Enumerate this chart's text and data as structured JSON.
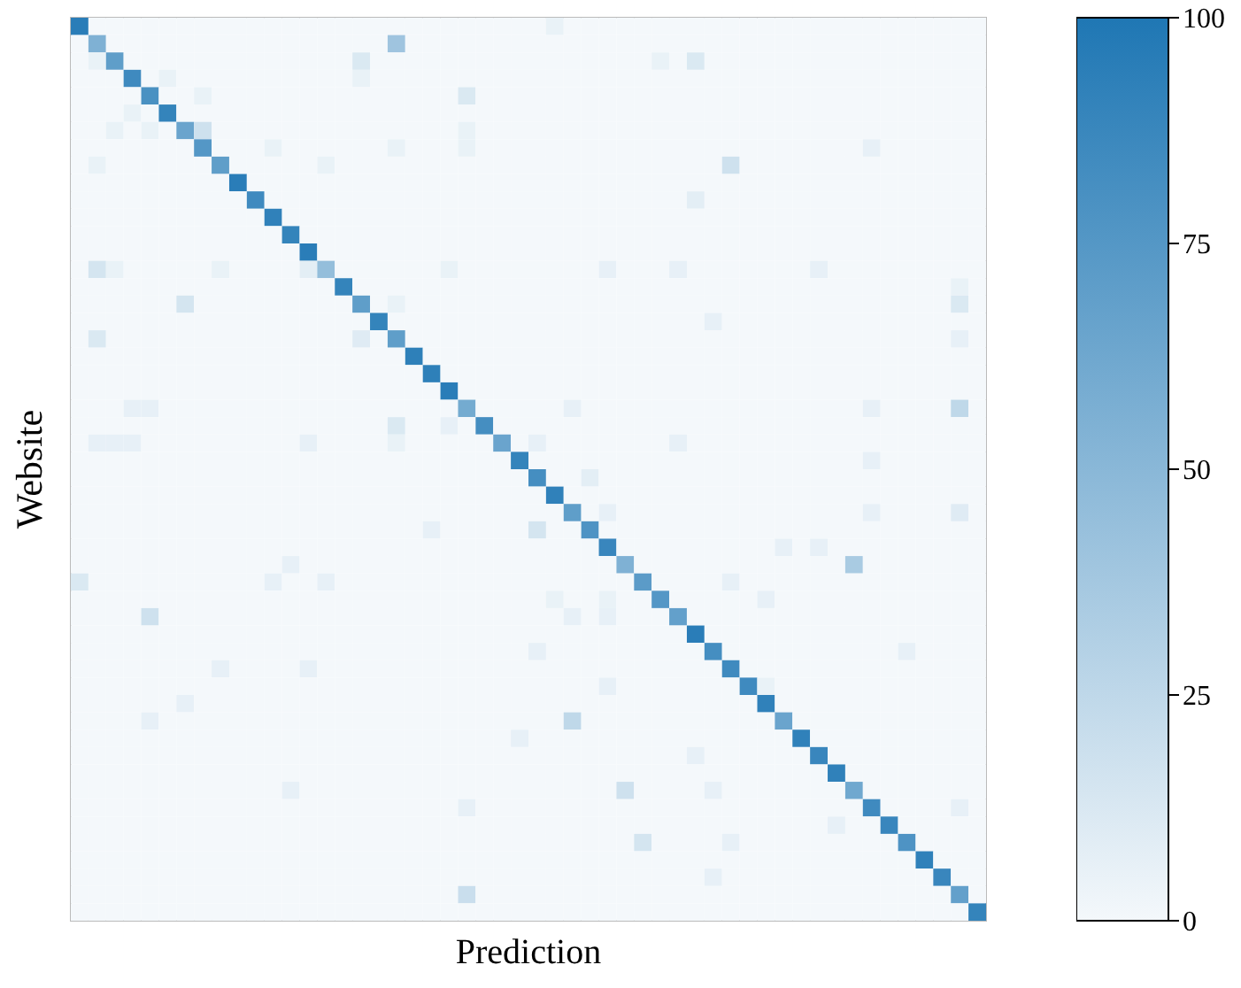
{
  "chart_data": {
    "type": "heatmap",
    "xlabel": "Prediction",
    "ylabel": "Website",
    "categories": [
      null,
      null,
      null,
      null,
      null,
      null,
      null,
      null,
      null,
      null,
      null,
      null,
      null,
      null,
      null,
      null,
      null,
      null,
      null,
      null,
      null,
      null,
      null,
      null,
      null,
      null,
      null,
      null,
      null,
      null,
      null,
      null,
      null,
      null,
      null,
      null,
      null,
      null,
      null,
      null,
      null,
      null,
      null,
      null,
      null,
      null,
      null,
      null,
      null,
      null,
      null,
      null
    ],
    "y_categories": [
      null,
      null,
      null,
      null,
      null,
      null,
      null,
      null,
      null,
      null,
      null,
      null,
      null,
      null,
      null,
      null,
      null,
      null,
      null,
      null,
      null,
      null,
      null,
      null,
      null,
      null,
      null,
      null,
      null,
      null,
      null,
      null,
      null,
      null,
      null,
      null,
      null,
      null,
      null,
      null,
      null,
      null,
      null,
      null,
      null,
      null,
      null,
      null,
      null,
      null,
      null,
      null
    ],
    "tick_labels": false,
    "clim": [
      0,
      100
    ],
    "cticks": [
      0,
      25,
      50,
      75,
      100
    ],
    "cells": [
      [
        95,
        0,
        0,
        0,
        0,
        0,
        0,
        0,
        0,
        0,
        0,
        0,
        0,
        0,
        0,
        0,
        0,
        0,
        0,
        0,
        0,
        0,
        0,
        0,
        0,
        0,
        0,
        5,
        0,
        0,
        0,
        0,
        0,
        0,
        0,
        0,
        0,
        0,
        0,
        0,
        0,
        0,
        0,
        0,
        0,
        0,
        0,
        0,
        0,
        0,
        0,
        0
      ],
      [
        0,
        55,
        0,
        0,
        0,
        0,
        0,
        0,
        0,
        0,
        0,
        0,
        0,
        0,
        0,
        0,
        0,
        0,
        40,
        0,
        0,
        0,
        0,
        0,
        0,
        0,
        0,
        0,
        0,
        0,
        0,
        0,
        0,
        0,
        0,
        0,
        0,
        0,
        0,
        0,
        0,
        0,
        0,
        0,
        0,
        0,
        0,
        0,
        0,
        0,
        0,
        0
      ],
      [
        0,
        5,
        70,
        0,
        0,
        0,
        0,
        0,
        0,
        0,
        0,
        0,
        0,
        0,
        0,
        0,
        12,
        0,
        0,
        0,
        0,
        0,
        0,
        0,
        0,
        0,
        0,
        0,
        0,
        0,
        0,
        0,
        0,
        5,
        0,
        12,
        0,
        0,
        0,
        0,
        0,
        0,
        0,
        0,
        0,
        0,
        0,
        0,
        0,
        0,
        0,
        0
      ],
      [
        0,
        0,
        0,
        85,
        0,
        5,
        0,
        0,
        0,
        0,
        0,
        0,
        0,
        0,
        0,
        0,
        5,
        0,
        0,
        0,
        0,
        0,
        0,
        0,
        0,
        0,
        0,
        0,
        0,
        0,
        0,
        0,
        0,
        0,
        0,
        0,
        0,
        0,
        0,
        0,
        0,
        0,
        0,
        0,
        0,
        0,
        0,
        0,
        0,
        0,
        0,
        0
      ],
      [
        0,
        0,
        0,
        0,
        80,
        0,
        0,
        5,
        0,
        0,
        0,
        0,
        0,
        0,
        0,
        0,
        0,
        0,
        0,
        0,
        0,
        0,
        12,
        0,
        0,
        0,
        0,
        0,
        0,
        0,
        0,
        0,
        0,
        0,
        0,
        0,
        0,
        0,
        0,
        0,
        0,
        0,
        0,
        0,
        0,
        0,
        0,
        0,
        0,
        0,
        0,
        0
      ],
      [
        0,
        0,
        0,
        5,
        0,
        90,
        0,
        0,
        0,
        0,
        0,
        0,
        0,
        0,
        0,
        0,
        0,
        0,
        0,
        0,
        0,
        0,
        0,
        0,
        0,
        0,
        0,
        0,
        0,
        0,
        0,
        0,
        0,
        0,
        0,
        0,
        0,
        0,
        0,
        0,
        0,
        0,
        0,
        0,
        0,
        0,
        0,
        0,
        0,
        0,
        0,
        0
      ],
      [
        0,
        0,
        5,
        0,
        5,
        0,
        65,
        18,
        0,
        0,
        0,
        0,
        0,
        0,
        0,
        0,
        0,
        0,
        0,
        0,
        0,
        0,
        5,
        0,
        0,
        0,
        0,
        0,
        0,
        0,
        0,
        0,
        0,
        0,
        0,
        0,
        0,
        0,
        0,
        0,
        0,
        0,
        0,
        0,
        0,
        0,
        0,
        0,
        0,
        0,
        0,
        0
      ],
      [
        0,
        0,
        0,
        0,
        0,
        0,
        0,
        75,
        0,
        0,
        0,
        5,
        0,
        0,
        0,
        0,
        0,
        0,
        5,
        0,
        0,
        0,
        5,
        0,
        0,
        0,
        0,
        0,
        0,
        0,
        0,
        0,
        0,
        0,
        0,
        0,
        0,
        0,
        0,
        0,
        0,
        0,
        0,
        0,
        0,
        6,
        0,
        0,
        0,
        0,
        0,
        0
      ],
      [
        0,
        5,
        0,
        0,
        0,
        0,
        0,
        0,
        70,
        0,
        0,
        0,
        0,
        0,
        5,
        0,
        0,
        0,
        0,
        0,
        0,
        0,
        0,
        0,
        0,
        0,
        0,
        0,
        0,
        0,
        0,
        0,
        0,
        0,
        0,
        0,
        0,
        18,
        0,
        0,
        0,
        0,
        0,
        0,
        0,
        0,
        0,
        0,
        0,
        0,
        0,
        0
      ],
      [
        0,
        0,
        0,
        0,
        0,
        0,
        0,
        0,
        0,
        95,
        0,
        0,
        0,
        0,
        0,
        0,
        0,
        0,
        0,
        0,
        0,
        0,
        0,
        0,
        0,
        0,
        0,
        0,
        0,
        0,
        0,
        0,
        0,
        0,
        0,
        0,
        0,
        0,
        0,
        0,
        0,
        0,
        0,
        0,
        0,
        0,
        0,
        0,
        0,
        0,
        0,
        0
      ],
      [
        0,
        0,
        0,
        0,
        0,
        0,
        0,
        0,
        0,
        0,
        85,
        0,
        0,
        0,
        0,
        0,
        0,
        0,
        0,
        0,
        0,
        0,
        0,
        0,
        0,
        0,
        0,
        0,
        0,
        0,
        0,
        0,
        0,
        0,
        0,
        8,
        0,
        0,
        0,
        0,
        0,
        0,
        0,
        0,
        0,
        0,
        0,
        0,
        0,
        0,
        0,
        0
      ],
      [
        0,
        0,
        0,
        0,
        0,
        0,
        0,
        0,
        0,
        0,
        0,
        92,
        0,
        0,
        0,
        0,
        0,
        0,
        0,
        0,
        0,
        0,
        0,
        0,
        0,
        0,
        0,
        0,
        0,
        0,
        0,
        0,
        0,
        0,
        0,
        0,
        0,
        0,
        0,
        0,
        0,
        0,
        0,
        0,
        0,
        0,
        0,
        0,
        0,
        0,
        0,
        0
      ],
      [
        0,
        0,
        0,
        0,
        0,
        0,
        0,
        0,
        0,
        0,
        0,
        0,
        90,
        0,
        0,
        0,
        0,
        0,
        0,
        0,
        0,
        0,
        0,
        0,
        0,
        0,
        0,
        0,
        0,
        0,
        0,
        0,
        0,
        0,
        0,
        0,
        0,
        0,
        0,
        0,
        0,
        0,
        0,
        0,
        0,
        0,
        0,
        0,
        0,
        0,
        0,
        0
      ],
      [
        0,
        0,
        0,
        0,
        0,
        0,
        0,
        0,
        0,
        0,
        0,
        0,
        0,
        95,
        0,
        0,
        0,
        0,
        0,
        0,
        0,
        0,
        0,
        0,
        0,
        0,
        0,
        0,
        0,
        0,
        0,
        0,
        0,
        0,
        0,
        0,
        0,
        0,
        0,
        0,
        0,
        0,
        0,
        0,
        0,
        0,
        0,
        0,
        0,
        0,
        0,
        0
      ],
      [
        0,
        15,
        5,
        0,
        0,
        0,
        0,
        0,
        5,
        0,
        0,
        0,
        0,
        8,
        45,
        0,
        0,
        0,
        0,
        0,
        0,
        5,
        0,
        0,
        0,
        0,
        0,
        0,
        0,
        0,
        6,
        0,
        0,
        0,
        6,
        0,
        0,
        0,
        0,
        0,
        0,
        0,
        6,
        0,
        0,
        0,
        0,
        0,
        0,
        0,
        0,
        0
      ],
      [
        0,
        0,
        0,
        0,
        0,
        0,
        0,
        0,
        0,
        0,
        0,
        0,
        0,
        0,
        0,
        90,
        0,
        0,
        0,
        0,
        0,
        0,
        0,
        0,
        0,
        0,
        0,
        0,
        0,
        0,
        0,
        0,
        0,
        0,
        0,
        0,
        0,
        0,
        0,
        0,
        0,
        0,
        0,
        0,
        0,
        0,
        0,
        0,
        0,
        0,
        5,
        0
      ],
      [
        0,
        0,
        0,
        0,
        0,
        0,
        15,
        0,
        0,
        0,
        0,
        0,
        0,
        0,
        0,
        0,
        70,
        0,
        5,
        0,
        0,
        0,
        0,
        0,
        0,
        0,
        0,
        0,
        0,
        0,
        0,
        0,
        0,
        0,
        0,
        0,
        0,
        0,
        0,
        0,
        0,
        0,
        0,
        0,
        0,
        0,
        0,
        0,
        0,
        0,
        12,
        0
      ],
      [
        0,
        0,
        0,
        0,
        0,
        0,
        0,
        0,
        0,
        0,
        0,
        0,
        0,
        0,
        0,
        0,
        0,
        90,
        0,
        0,
        0,
        0,
        0,
        0,
        0,
        0,
        0,
        0,
        0,
        0,
        0,
        0,
        0,
        0,
        0,
        0,
        6,
        0,
        0,
        0,
        0,
        0,
        0,
        0,
        0,
        0,
        0,
        0,
        0,
        0,
        0,
        0
      ],
      [
        0,
        12,
        0,
        0,
        0,
        0,
        0,
        0,
        0,
        0,
        0,
        0,
        0,
        0,
        0,
        0,
        10,
        0,
        70,
        0,
        0,
        0,
        0,
        0,
        0,
        0,
        0,
        0,
        0,
        0,
        0,
        0,
        0,
        0,
        0,
        0,
        0,
        0,
        0,
        0,
        0,
        0,
        0,
        0,
        0,
        0,
        0,
        0,
        0,
        0,
        6,
        0
      ],
      [
        0,
        0,
        0,
        0,
        0,
        0,
        0,
        0,
        0,
        0,
        0,
        0,
        0,
        0,
        0,
        0,
        0,
        0,
        0,
        93,
        0,
        0,
        0,
        0,
        0,
        0,
        0,
        0,
        0,
        0,
        0,
        0,
        0,
        0,
        0,
        0,
        0,
        0,
        0,
        0,
        0,
        0,
        0,
        0,
        0,
        0,
        0,
        0,
        0,
        0,
        0,
        0
      ],
      [
        0,
        0,
        0,
        0,
        0,
        0,
        0,
        0,
        0,
        0,
        0,
        0,
        0,
        0,
        0,
        0,
        0,
        0,
        0,
        0,
        93,
        0,
        0,
        0,
        0,
        0,
        0,
        0,
        0,
        0,
        0,
        0,
        0,
        0,
        0,
        0,
        0,
        0,
        0,
        0,
        0,
        0,
        0,
        0,
        0,
        0,
        0,
        0,
        0,
        0,
        0,
        0
      ],
      [
        0,
        0,
        0,
        0,
        0,
        0,
        0,
        0,
        0,
        0,
        0,
        0,
        0,
        0,
        0,
        0,
        0,
        0,
        0,
        0,
        0,
        95,
        0,
        0,
        0,
        0,
        0,
        0,
        0,
        0,
        0,
        0,
        0,
        0,
        0,
        0,
        0,
        0,
        0,
        0,
        0,
        0,
        0,
        0,
        0,
        0,
        0,
        0,
        0,
        0,
        0,
        0
      ],
      [
        0,
        0,
        0,
        6,
        6,
        0,
        0,
        0,
        0,
        0,
        0,
        0,
        0,
        0,
        0,
        0,
        0,
        0,
        0,
        0,
        0,
        0,
        60,
        0,
        0,
        0,
        0,
        0,
        6,
        0,
        0,
        0,
        0,
        0,
        0,
        0,
        0,
        0,
        0,
        0,
        0,
        0,
        0,
        0,
        0,
        6,
        0,
        0,
        0,
        0,
        25,
        0
      ],
      [
        0,
        0,
        0,
        0,
        0,
        0,
        0,
        0,
        0,
        0,
        0,
        0,
        0,
        0,
        0,
        0,
        0,
        0,
        12,
        0,
        0,
        6,
        0,
        82,
        0,
        0,
        0,
        0,
        0,
        0,
        0,
        0,
        0,
        0,
        0,
        0,
        0,
        0,
        0,
        0,
        0,
        0,
        0,
        0,
        0,
        0,
        0,
        0,
        0,
        0,
        0,
        0
      ],
      [
        0,
        6,
        6,
        6,
        0,
        0,
        0,
        0,
        0,
        0,
        0,
        0,
        0,
        6,
        0,
        0,
        0,
        0,
        5,
        0,
        0,
        0,
        0,
        0,
        65,
        0,
        6,
        0,
        0,
        0,
        0,
        0,
        0,
        0,
        6,
        0,
        0,
        0,
        0,
        0,
        0,
        0,
        0,
        0,
        0,
        0,
        0,
        0,
        0,
        0,
        0,
        0
      ],
      [
        0,
        0,
        0,
        0,
        0,
        0,
        0,
        0,
        0,
        0,
        0,
        0,
        0,
        0,
        0,
        0,
        0,
        0,
        0,
        0,
        0,
        0,
        0,
        0,
        0,
        90,
        0,
        0,
        0,
        0,
        0,
        0,
        0,
        0,
        0,
        0,
        0,
        0,
        0,
        0,
        0,
        0,
        0,
        0,
        0,
        6,
        0,
        0,
        0,
        0,
        0,
        0
      ],
      [
        0,
        0,
        0,
        0,
        0,
        0,
        0,
        0,
        0,
        0,
        0,
        0,
        0,
        0,
        0,
        0,
        0,
        0,
        0,
        0,
        0,
        0,
        0,
        0,
        0,
        0,
        82,
        0,
        0,
        8,
        0,
        0,
        0,
        0,
        0,
        0,
        0,
        0,
        0,
        0,
        0,
        0,
        0,
        0,
        0,
        0,
        0,
        0,
        0,
        0,
        0,
        0
      ],
      [
        0,
        0,
        0,
        0,
        0,
        0,
        0,
        0,
        0,
        0,
        0,
        0,
        0,
        0,
        0,
        0,
        0,
        0,
        0,
        0,
        0,
        0,
        0,
        0,
        0,
        0,
        0,
        92,
        0,
        0,
        0,
        0,
        0,
        0,
        0,
        0,
        0,
        0,
        0,
        0,
        0,
        0,
        0,
        0,
        0,
        0,
        0,
        0,
        0,
        0,
        0,
        0
      ],
      [
        0,
        0,
        0,
        0,
        0,
        0,
        0,
        0,
        0,
        0,
        0,
        0,
        0,
        0,
        0,
        0,
        0,
        0,
        0,
        0,
        0,
        0,
        0,
        0,
        0,
        0,
        0,
        0,
        70,
        0,
        6,
        0,
        0,
        0,
        0,
        0,
        0,
        0,
        0,
        0,
        0,
        0,
        0,
        0,
        0,
        6,
        0,
        0,
        0,
        0,
        10,
        0
      ],
      [
        0,
        0,
        0,
        0,
        0,
        0,
        0,
        0,
        0,
        0,
        0,
        0,
        0,
        0,
        0,
        0,
        0,
        0,
        0,
        0,
        6,
        0,
        0,
        0,
        0,
        0,
        15,
        0,
        0,
        78,
        0,
        0,
        0,
        0,
        0,
        0,
        0,
        0,
        0,
        0,
        0,
        0,
        0,
        0,
        0,
        0,
        0,
        0,
        0,
        0,
        0,
        0
      ],
      [
        0,
        0,
        0,
        0,
        0,
        0,
        0,
        0,
        0,
        0,
        0,
        0,
        0,
        0,
        0,
        0,
        0,
        0,
        0,
        0,
        0,
        0,
        0,
        0,
        0,
        0,
        0,
        0,
        0,
        0,
        88,
        0,
        0,
        0,
        0,
        0,
        0,
        0,
        0,
        0,
        6,
        0,
        6,
        0,
        0,
        0,
        0,
        0,
        0,
        0,
        0,
        0
      ],
      [
        0,
        0,
        0,
        0,
        0,
        0,
        0,
        0,
        0,
        0,
        0,
        0,
        6,
        0,
        0,
        0,
        0,
        0,
        0,
        0,
        0,
        0,
        0,
        0,
        0,
        0,
        0,
        0,
        0,
        0,
        0,
        55,
        0,
        0,
        0,
        0,
        0,
        0,
        0,
        0,
        0,
        0,
        0,
        0,
        35,
        0,
        0,
        0,
        0,
        0,
        0,
        0
      ],
      [
        12,
        0,
        0,
        0,
        0,
        0,
        0,
        0,
        0,
        0,
        0,
        6,
        0,
        0,
        6,
        0,
        0,
        0,
        0,
        0,
        0,
        0,
        0,
        0,
        0,
        0,
        0,
        0,
        0,
        0,
        0,
        0,
        72,
        0,
        0,
        0,
        0,
        6,
        0,
        0,
        0,
        0,
        0,
        0,
        0,
        0,
        0,
        0,
        0,
        0,
        0,
        0
      ],
      [
        0,
        0,
        0,
        0,
        0,
        0,
        0,
        0,
        0,
        0,
        0,
        0,
        0,
        0,
        0,
        0,
        0,
        0,
        0,
        0,
        0,
        0,
        0,
        0,
        0,
        0,
        0,
        5,
        0,
        0,
        5,
        0,
        0,
        75,
        0,
        0,
        0,
        0,
        0,
        6,
        0,
        0,
        0,
        0,
        0,
        0,
        0,
        0,
        0,
        0,
        0,
        0
      ],
      [
        0,
        0,
        0,
        0,
        18,
        0,
        0,
        0,
        0,
        0,
        0,
        0,
        0,
        0,
        0,
        0,
        0,
        0,
        0,
        0,
        0,
        0,
        0,
        0,
        0,
        0,
        0,
        0,
        6,
        0,
        6,
        0,
        0,
        0,
        68,
        0,
        0,
        0,
        0,
        0,
        0,
        0,
        0,
        0,
        0,
        0,
        0,
        0,
        0,
        0,
        0,
        0
      ],
      [
        0,
        0,
        0,
        0,
        0,
        0,
        0,
        0,
        0,
        0,
        0,
        0,
        0,
        0,
        0,
        0,
        0,
        0,
        0,
        0,
        0,
        0,
        0,
        0,
        0,
        0,
        0,
        0,
        0,
        0,
        0,
        0,
        0,
        0,
        0,
        95,
        0,
        0,
        0,
        0,
        0,
        0,
        0,
        0,
        0,
        0,
        0,
        0,
        0,
        0,
        0,
        0
      ],
      [
        0,
        0,
        0,
        0,
        0,
        0,
        0,
        0,
        0,
        0,
        0,
        0,
        0,
        0,
        0,
        0,
        0,
        0,
        0,
        0,
        0,
        0,
        0,
        0,
        0,
        0,
        6,
        0,
        0,
        0,
        0,
        0,
        0,
        0,
        0,
        0,
        82,
        0,
        0,
        0,
        0,
        0,
        0,
        0,
        0,
        0,
        0,
        6,
        0,
        0,
        0,
        0
      ],
      [
        0,
        0,
        0,
        0,
        0,
        0,
        0,
        0,
        6,
        0,
        0,
        0,
        0,
        6,
        0,
        0,
        0,
        0,
        0,
        0,
        0,
        0,
        0,
        0,
        0,
        0,
        0,
        0,
        0,
        0,
        0,
        0,
        0,
        0,
        0,
        0,
        0,
        85,
        0,
        0,
        0,
        0,
        0,
        0,
        0,
        0,
        0,
        0,
        0,
        0,
        0,
        0
      ],
      [
        0,
        0,
        0,
        0,
        0,
        0,
        0,
        0,
        0,
        0,
        0,
        0,
        0,
        0,
        0,
        0,
        0,
        0,
        0,
        0,
        0,
        0,
        0,
        0,
        0,
        0,
        0,
        0,
        0,
        0,
        6,
        0,
        0,
        0,
        0,
        0,
        0,
        0,
        85,
        5,
        0,
        0,
        0,
        0,
        0,
        0,
        0,
        0,
        0,
        0,
        0,
        0
      ],
      [
        0,
        0,
        0,
        0,
        0,
        0,
        6,
        0,
        0,
        0,
        0,
        0,
        0,
        0,
        0,
        0,
        0,
        0,
        0,
        0,
        0,
        0,
        0,
        0,
        0,
        0,
        0,
        0,
        0,
        0,
        0,
        0,
        0,
        0,
        0,
        0,
        0,
        0,
        0,
        92,
        0,
        0,
        0,
        0,
        0,
        0,
        0,
        0,
        0,
        0,
        0,
        0
      ],
      [
        0,
        0,
        0,
        0,
        6,
        0,
        0,
        0,
        0,
        0,
        0,
        0,
        0,
        0,
        0,
        0,
        0,
        0,
        0,
        0,
        0,
        0,
        0,
        0,
        0,
        0,
        0,
        0,
        25,
        0,
        0,
        0,
        0,
        0,
        0,
        0,
        0,
        0,
        0,
        0,
        65,
        0,
        0,
        0,
        0,
        0,
        0,
        0,
        0,
        0,
        0,
        0
      ],
      [
        0,
        0,
        0,
        0,
        0,
        0,
        0,
        0,
        0,
        0,
        0,
        0,
        0,
        0,
        0,
        0,
        0,
        0,
        0,
        0,
        0,
        0,
        0,
        0,
        0,
        6,
        0,
        0,
        0,
        0,
        0,
        0,
        0,
        0,
        0,
        0,
        0,
        0,
        0,
        0,
        0,
        92,
        0,
        0,
        0,
        0,
        0,
        0,
        0,
        0,
        0,
        0
      ],
      [
        0,
        0,
        0,
        0,
        0,
        0,
        0,
        0,
        0,
        0,
        0,
        0,
        0,
        0,
        0,
        0,
        0,
        0,
        0,
        0,
        0,
        0,
        0,
        0,
        0,
        0,
        0,
        0,
        0,
        0,
        0,
        0,
        0,
        0,
        0,
        6,
        0,
        0,
        0,
        0,
        0,
        0,
        88,
        0,
        0,
        0,
        0,
        0,
        0,
        0,
        0,
        0
      ],
      [
        0,
        0,
        0,
        0,
        0,
        0,
        0,
        0,
        0,
        0,
        0,
        0,
        0,
        0,
        0,
        0,
        0,
        0,
        0,
        0,
        0,
        0,
        0,
        0,
        0,
        0,
        0,
        0,
        0,
        0,
        0,
        0,
        0,
        0,
        0,
        0,
        0,
        0,
        0,
        0,
        0,
        0,
        0,
        92,
        0,
        0,
        0,
        0,
        0,
        0,
        0,
        0
      ],
      [
        0,
        0,
        0,
        0,
        0,
        0,
        0,
        0,
        0,
        0,
        0,
        0,
        6,
        0,
        0,
        0,
        0,
        0,
        0,
        0,
        0,
        0,
        0,
        0,
        0,
        0,
        0,
        0,
        0,
        0,
        0,
        18,
        0,
        0,
        0,
        0,
        6,
        0,
        0,
        0,
        0,
        0,
        0,
        0,
        62,
        0,
        0,
        0,
        0,
        0,
        0,
        0
      ],
      [
        0,
        0,
        0,
        0,
        0,
        0,
        0,
        0,
        0,
        0,
        0,
        0,
        0,
        0,
        0,
        0,
        0,
        0,
        0,
        0,
        0,
        0,
        6,
        0,
        0,
        0,
        0,
        0,
        0,
        0,
        0,
        0,
        0,
        0,
        0,
        0,
        0,
        0,
        0,
        0,
        0,
        0,
        0,
        0,
        0,
        85,
        0,
        0,
        0,
        0,
        6,
        0
      ],
      [
        0,
        0,
        0,
        0,
        0,
        0,
        0,
        0,
        0,
        0,
        0,
        0,
        0,
        0,
        0,
        0,
        0,
        0,
        0,
        0,
        0,
        0,
        0,
        0,
        0,
        0,
        0,
        0,
        0,
        0,
        0,
        0,
        0,
        0,
        0,
        0,
        0,
        0,
        0,
        0,
        0,
        0,
        0,
        6,
        0,
        0,
        88,
        0,
        0,
        0,
        0,
        0
      ],
      [
        0,
        0,
        0,
        0,
        0,
        0,
        0,
        0,
        0,
        0,
        0,
        0,
        0,
        0,
        0,
        0,
        0,
        0,
        0,
        0,
        0,
        0,
        0,
        0,
        0,
        0,
        0,
        0,
        0,
        0,
        0,
        0,
        15,
        0,
        0,
        0,
        0,
        6,
        0,
        0,
        0,
        0,
        0,
        0,
        0,
        0,
        0,
        78,
        0,
        0,
        0,
        0
      ],
      [
        0,
        0,
        0,
        0,
        0,
        0,
        0,
        0,
        0,
        0,
        0,
        0,
        0,
        0,
        0,
        0,
        0,
        0,
        0,
        0,
        0,
        0,
        0,
        0,
        0,
        0,
        0,
        0,
        0,
        0,
        0,
        0,
        0,
        0,
        0,
        0,
        0,
        0,
        0,
        0,
        0,
        0,
        0,
        0,
        0,
        0,
        0,
        0,
        92,
        0,
        0,
        0
      ],
      [
        0,
        0,
        0,
        0,
        0,
        0,
        0,
        0,
        0,
        0,
        0,
        0,
        0,
        0,
        0,
        0,
        0,
        0,
        0,
        0,
        0,
        0,
        0,
        0,
        0,
        0,
        0,
        0,
        0,
        0,
        0,
        0,
        0,
        0,
        0,
        0,
        6,
        0,
        0,
        0,
        0,
        0,
        0,
        0,
        0,
        0,
        0,
        0,
        0,
        88,
        0,
        0
      ],
      [
        0,
        0,
        0,
        0,
        0,
        0,
        0,
        0,
        0,
        0,
        0,
        0,
        0,
        0,
        0,
        0,
        0,
        0,
        0,
        0,
        0,
        0,
        20,
        0,
        0,
        0,
        0,
        0,
        0,
        0,
        0,
        0,
        0,
        0,
        0,
        0,
        0,
        0,
        0,
        0,
        0,
        0,
        0,
        0,
        0,
        0,
        0,
        0,
        0,
        0,
        68,
        0
      ],
      [
        0,
        0,
        0,
        0,
        0,
        0,
        0,
        0,
        0,
        0,
        0,
        0,
        0,
        0,
        0,
        0,
        0,
        0,
        0,
        0,
        0,
        0,
        0,
        0,
        0,
        0,
        0,
        0,
        0,
        0,
        0,
        0,
        0,
        0,
        0,
        0,
        0,
        0,
        0,
        0,
        0,
        0,
        0,
        0,
        0,
        0,
        0,
        0,
        0,
        0,
        0,
        90
      ]
    ]
  }
}
